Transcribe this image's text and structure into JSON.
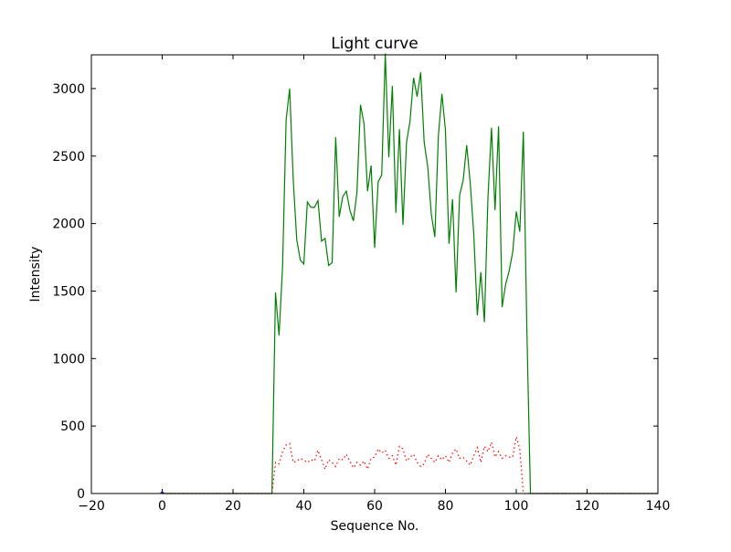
{
  "chart_data": {
    "type": "line",
    "title": "Light curve",
    "xlabel": "Sequence No.",
    "ylabel": "Intensity",
    "xlim": [
      -20,
      140
    ],
    "ylim": [
      0,
      3250
    ],
    "xticks": [
      -20,
      0,
      20,
      40,
      60,
      80,
      100,
      120,
      140
    ],
    "xtick_labels": [
      "−20",
      "0",
      "20",
      "40",
      "60",
      "80",
      "100",
      "120",
      "140"
    ],
    "yticks": [
      0,
      500,
      1000,
      1500,
      2000,
      2500,
      3000
    ],
    "ytick_labels": [
      "0",
      "500",
      "1000",
      "1500",
      "2000",
      "2500",
      "3000"
    ],
    "grid": false,
    "series": [
      {
        "color": "#008000",
        "style": "solid",
        "x": [
          0,
          31,
          32,
          33,
          34,
          35,
          36,
          37,
          38,
          39,
          40,
          41,
          42,
          43,
          44,
          45,
          46,
          47,
          48,
          49,
          50,
          51,
          52,
          53,
          54,
          55,
          56,
          57,
          58,
          59,
          60,
          61,
          62,
          63,
          64,
          65,
          66,
          67,
          68,
          69,
          70,
          71,
          72,
          73,
          74,
          75,
          76,
          77,
          78,
          79,
          80,
          81,
          82,
          83,
          84,
          85,
          86,
          87,
          88,
          89,
          90,
          91,
          92,
          93,
          94,
          95,
          96,
          97,
          98,
          99,
          100,
          101,
          102,
          103,
          104,
          140
        ],
        "values": [
          0,
          0,
          1490,
          1170,
          1680,
          2770,
          3000,
          2330,
          1880,
          1730,
          1700,
          2160,
          2120,
          2120,
          2170,
          1870,
          1890,
          1690,
          1710,
          2640,
          2050,
          2200,
          2240,
          2100,
          2020,
          2230,
          2880,
          2740,
          2240,
          2430,
          1820,
          2310,
          2360,
          3260,
          2490,
          3020,
          2080,
          2700,
          1990,
          2600,
          2760,
          3080,
          2940,
          3120,
          2600,
          2420,
          2070,
          1900,
          2650,
          2960,
          2690,
          1850,
          2180,
          1490,
          2210,
          2320,
          2580,
          2300,
          1920,
          1320,
          1640,
          1270,
          2190,
          2710,
          2100,
          2720,
          1380,
          1550,
          1650,
          1790,
          2090,
          1940,
          2680,
          1200,
          0,
          0
        ]
      },
      {
        "color": "#ff0000",
        "style": "dotted",
        "x": [
          0,
          31,
          32,
          33,
          34,
          35,
          36,
          37,
          38,
          39,
          40,
          41,
          42,
          43,
          44,
          45,
          46,
          47,
          48,
          49,
          50,
          51,
          52,
          53,
          54,
          55,
          56,
          57,
          58,
          59,
          60,
          61,
          62,
          63,
          64,
          65,
          66,
          67,
          68,
          69,
          70,
          71,
          72,
          73,
          74,
          75,
          76,
          77,
          78,
          79,
          80,
          81,
          82,
          83,
          84,
          85,
          86,
          87,
          88,
          89,
          90,
          91,
          92,
          93,
          94,
          95,
          96,
          97,
          98,
          99,
          100,
          101,
          102,
          103,
          104,
          140
        ],
        "values": [
          0,
          0,
          230,
          220,
          310,
          360,
          370,
          230,
          240,
          260,
          250,
          230,
          250,
          240,
          320,
          250,
          180,
          250,
          230,
          200,
          260,
          250,
          290,
          240,
          190,
          230,
          210,
          240,
          180,
          260,
          270,
          330,
          300,
          320,
          260,
          280,
          210,
          350,
          330,
          240,
          270,
          290,
          230,
          200,
          220,
          290,
          260,
          230,
          280,
          250,
          280,
          230,
          300,
          330,
          260,
          270,
          240,
          210,
          280,
          340,
          230,
          350,
          310,
          380,
          270,
          310,
          260,
          280,
          270,
          270,
          420,
          330,
          0,
          0,
          0,
          0
        ]
      },
      {
        "color": "#0000ff",
        "style": "solid",
        "x": [
          -0.5,
          0,
          0.5
        ],
        "values": [
          5,
          10,
          5
        ]
      }
    ]
  }
}
